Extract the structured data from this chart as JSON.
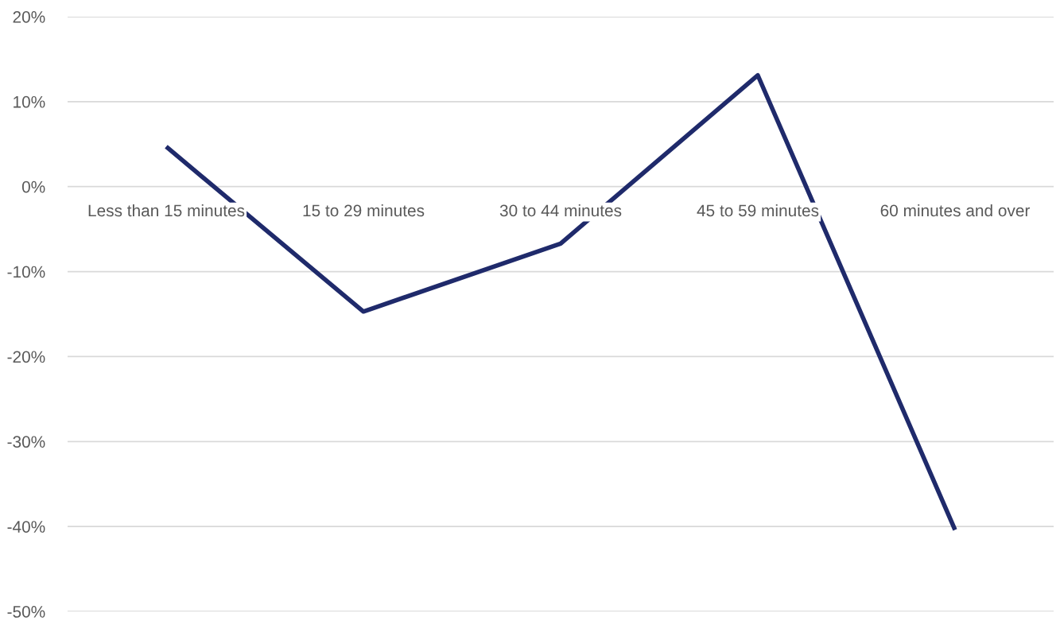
{
  "chart_data": {
    "type": "line",
    "categories": [
      "Less than 15 minutes",
      "15 to 29 minutes",
      "30 to 44 minutes",
      "45 to 59 minutes",
      "60 minutes and over"
    ],
    "series": [
      {
        "color": "#1f2a6b",
        "values": [
          4.7,
          -14.7,
          -6.7,
          13.1,
          -40.4
        ]
      }
    ],
    "ylim": [
      -50,
      20
    ],
    "yticks": [
      {
        "value": -50,
        "label": "-50%"
      },
      {
        "value": -40,
        "label": "-40%"
      },
      {
        "value": -30,
        "label": "-30%"
      },
      {
        "value": -20,
        "label": "-20%"
      },
      {
        "value": -10,
        "label": "-10%"
      },
      {
        "value": 0,
        "label": "0%"
      },
      {
        "value": 10,
        "label": "10%"
      },
      {
        "value": 20,
        "label": "20%"
      }
    ],
    "grid": "y",
    "legend": false,
    "marker": "none",
    "line_style": "solid"
  }
}
